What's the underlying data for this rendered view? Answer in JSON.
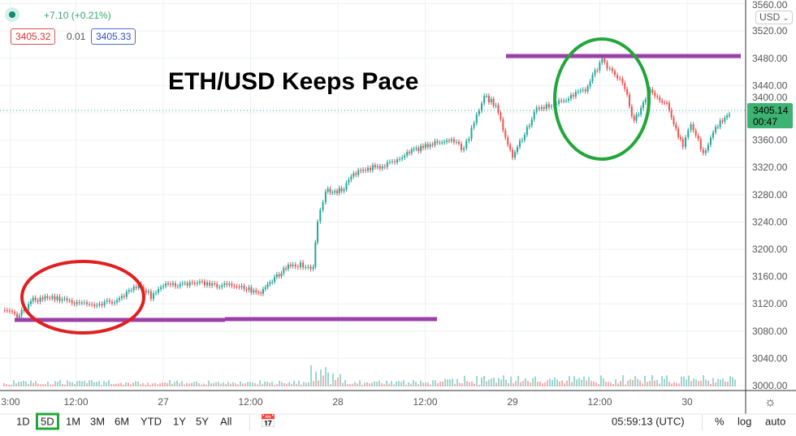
{
  "legend": {
    "change": "+7.10 (+0.21%)",
    "bid": "3405.32",
    "spread": "0.01",
    "ask": "3405.33"
  },
  "currency": "USD",
  "price_label": {
    "price": "3405.14",
    "countdown": "00:47"
  },
  "timeframes": [
    "1D",
    "5D",
    "1M",
    "3M",
    "6M",
    "YTD",
    "1Y",
    "5Y",
    "All"
  ],
  "active_timeframe": "5D",
  "clock": "05:59:13 (UTC)",
  "scale_options": [
    "%",
    "log",
    "auto"
  ],
  "colors": {
    "up": "#26a69a",
    "down": "#ef5350",
    "annotation_line": "#9c3fa8",
    "circle_low": "#e02020",
    "circle_high": "#22a63a",
    "price_tag": "#3cb371"
  },
  "chart_data": {
    "type": "line",
    "title": "ETH/USD Keeps Pace",
    "x_unit": "hours since 26 00:00 UTC",
    "x": [
      2.1,
      3.8,
      6.0,
      8.3,
      12.7,
      17.2,
      20.5,
      22.2,
      23.9,
      27.2,
      30.6,
      35.0,
      37.3,
      39.5,
      41.7,
      44.5,
      45.1,
      46.2,
      48.4,
      50.7,
      54.0,
      57.4,
      59.6,
      63.5,
      65.2,
      68.0,
      69.6,
      71.9,
      75.2,
      78.6,
      81.9,
      84.2,
      87.0,
      88.6,
      90.8,
      93.1,
      95.3,
      96.4,
      98.1,
      99.8,
      102.0
    ],
    "y": [
      3111,
      3101,
      3125,
      3131,
      3119,
      3123,
      3149,
      3131,
      3147,
      3149,
      3149,
      3143,
      3137,
      3161,
      3179,
      3173,
      3244,
      3286,
      3286,
      3316,
      3322,
      3340,
      3351,
      3363,
      3346,
      3425,
      3411,
      3334,
      3405,
      3417,
      3435,
      3476,
      3447,
      3387,
      3435,
      3411,
      3351,
      3387,
      3340,
      3378,
      3405
    ],
    "x_ticks": [
      "3:00",
      "12:00",
      "27",
      "12:00",
      "28",
      "12:00",
      "29",
      "12:00",
      "30"
    ],
    "x_tick_hours": [
      3,
      12,
      24,
      36,
      48,
      60,
      72,
      84,
      96
    ],
    "y_ticks": [
      3000,
      3040,
      3080,
      3120,
      3160,
      3200,
      3240,
      3280,
      3320,
      3360,
      3400,
      3440,
      3480,
      3520,
      3560
    ],
    "ylim": [
      3000,
      3560
    ],
    "annotations": {
      "support_level": 3100,
      "resistance_level": 3483
    }
  }
}
